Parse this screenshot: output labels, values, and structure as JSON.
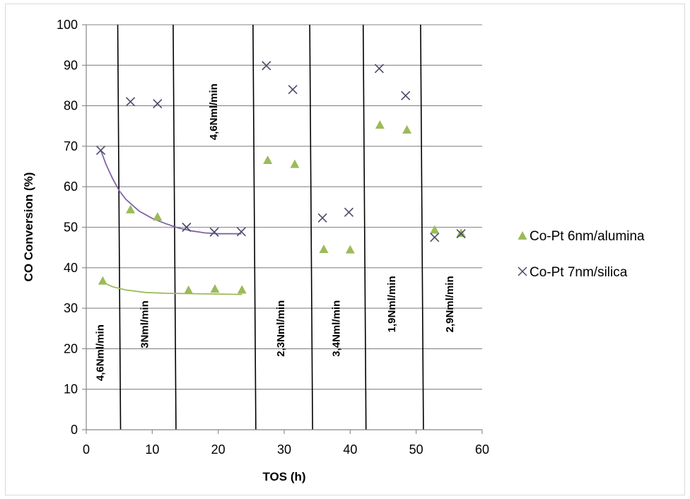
{
  "chart_data": {
    "type": "scatter",
    "title": "",
    "xlabel": "TOS (h)",
    "ylabel": "CO Conversion (%)",
    "xlim": [
      0,
      60
    ],
    "ylim": [
      0,
      100
    ],
    "x_ticks": [
      0,
      10,
      20,
      30,
      40,
      50,
      60
    ],
    "y_ticks": [
      0,
      10,
      20,
      30,
      40,
      50,
      60,
      70,
      80,
      90,
      100
    ],
    "grid": "horizontal",
    "legend_position": "right",
    "series": [
      {
        "name": "Co-Pt 6nm/alumina",
        "marker": "triangle",
        "color": "#9bbb59",
        "points": [
          [
            2.5,
            36.7
          ],
          [
            6.7,
            54.3
          ],
          [
            10.8,
            52.5
          ],
          [
            15.5,
            34.4
          ],
          [
            19.5,
            34.7
          ],
          [
            23.6,
            34.5
          ],
          [
            27.5,
            66.5
          ],
          [
            31.6,
            65.5
          ],
          [
            36.0,
            44.5
          ],
          [
            40.0,
            44.4
          ],
          [
            44.5,
            75.2
          ],
          [
            48.6,
            74.0
          ],
          [
            52.8,
            49.3
          ],
          [
            56.8,
            48.5
          ]
        ],
        "trend": [
          [
            2.5,
            36.4
          ],
          [
            4,
            35.3
          ],
          [
            6,
            34.5
          ],
          [
            9,
            33.9
          ],
          [
            12,
            33.7
          ],
          [
            16,
            33.6
          ],
          [
            20,
            33.5
          ],
          [
            23.6,
            33.4
          ]
        ]
      },
      {
        "name": "Co-Pt 7nm/silica",
        "marker": "x",
        "color": "#4a4a6a",
        "points": [
          [
            2.2,
            69.0
          ],
          [
            6.7,
            81.0
          ],
          [
            10.8,
            80.5
          ],
          [
            15.2,
            50.0
          ],
          [
            19.4,
            48.8
          ],
          [
            23.5,
            48.9
          ],
          [
            27.3,
            89.9
          ],
          [
            31.3,
            84.0
          ],
          [
            35.8,
            52.3
          ],
          [
            39.8,
            53.7
          ],
          [
            44.4,
            89.2
          ],
          [
            48.4,
            82.5
          ],
          [
            52.8,
            47.5
          ],
          [
            56.8,
            48.4
          ]
        ],
        "trend": [
          [
            2.2,
            69.0
          ],
          [
            3,
            65.5
          ],
          [
            4,
            62.0
          ],
          [
            5,
            59.0
          ],
          [
            6,
            56.9
          ],
          [
            8,
            54.0
          ],
          [
            10,
            52.2
          ],
          [
            12,
            50.9
          ],
          [
            14,
            49.8
          ],
          [
            16,
            49.1
          ],
          [
            18,
            48.6
          ],
          [
            20,
            48.4
          ],
          [
            23.5,
            48.4
          ]
        ]
      }
    ],
    "zone_dividers": [
      5.2,
      13.6,
      25.7,
      34.3,
      42.4,
      51.1
    ],
    "zone_labels": [
      {
        "text": "4,6Nml/min",
        "x": 2.6,
        "y": 19
      },
      {
        "text": "3Nml/min",
        "x": 9.4,
        "y": 26
      },
      {
        "text": "4,6Nml/min",
        "x": 19.8,
        "y": 78.5
      },
      {
        "text": "2,3Nml/min",
        "x": 30.0,
        "y": 25
      },
      {
        "text": "3,4Nml/min",
        "x": 38.4,
        "y": 25
      },
      {
        "text": "1,9Nml/min",
        "x": 46.8,
        "y": 31
      },
      {
        "text": "2,9Nml/min",
        "x": 55.6,
        "y": 31
      }
    ]
  }
}
